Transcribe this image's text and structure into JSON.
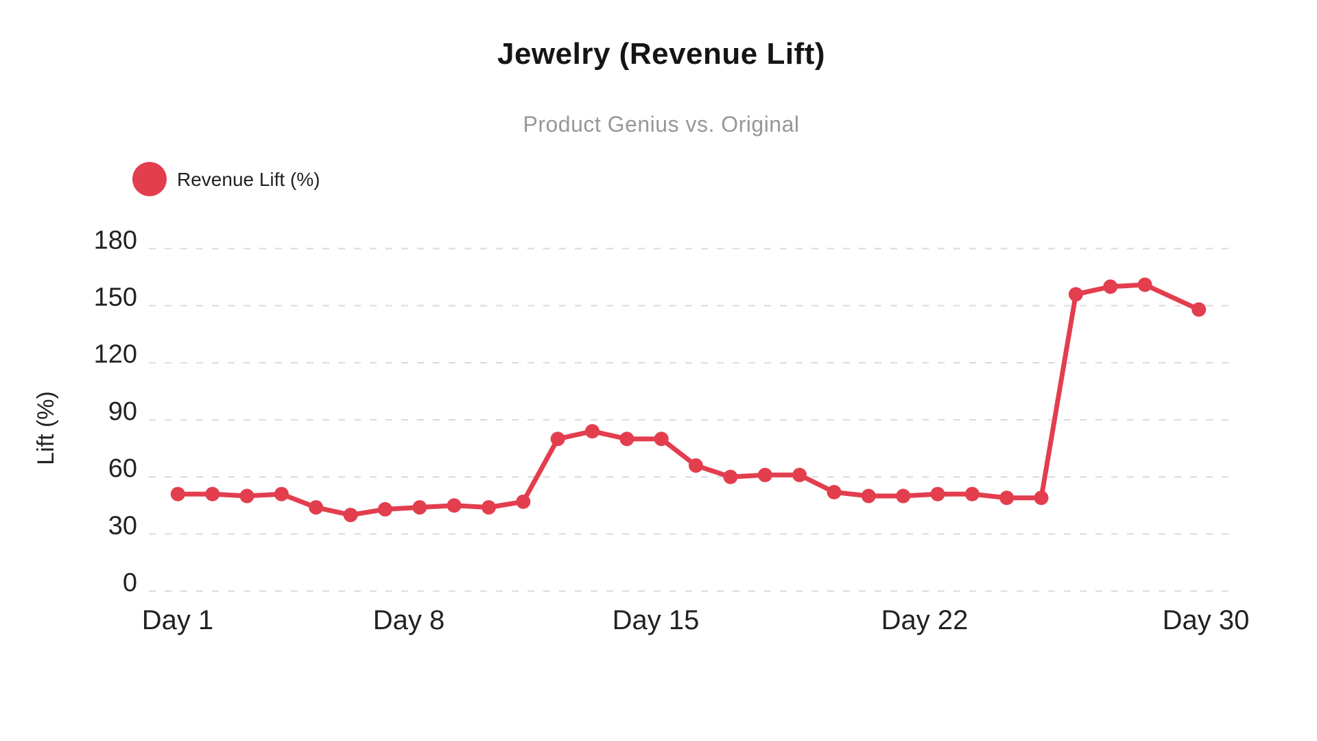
{
  "chart": {
    "title": "Jewelry (Revenue Lift)",
    "subtitle": "Product Genius vs. Original",
    "y_axis_title": "Lift (%)",
    "legend": {
      "label": "Revenue Lift (%)"
    }
  },
  "colors": {
    "series": "#E23E4E",
    "title": "#151515",
    "subtitle": "#95979A",
    "tick": "#222222",
    "grid": "#DADADA",
    "background": "#FFFFFF"
  },
  "chart_data": {
    "type": "line",
    "title": "Jewelry (Revenue Lift)",
    "subtitle": "Product Genius vs. Original",
    "xlabel": "",
    "ylabel": "Lift (%)",
    "x": [
      1,
      2,
      3,
      4,
      5,
      6,
      7,
      8,
      9,
      10,
      11,
      12,
      13,
      14,
      15,
      16,
      17,
      18,
      19,
      20,
      21,
      22,
      23,
      24,
      25,
      26,
      27,
      28,
      29,
      30
    ],
    "x_tick_labels": [
      "Day 1",
      "Day 8",
      "Day 15",
      "Day 22",
      "Day 30"
    ],
    "y_ticks": [
      0,
      30,
      60,
      90,
      120,
      150,
      180
    ],
    "ylim": [
      0,
      180
    ],
    "grid": "horizontal-dashed",
    "legend_position": "top-left",
    "markers": true,
    "series": [
      {
        "name": "Revenue Lift (%)",
        "color": "#E23E4E",
        "values": [
          51,
          51,
          50,
          51,
          44,
          40,
          43,
          44,
          45,
          44,
          47,
          80,
          84,
          80,
          80,
          66,
          60,
          61,
          61,
          52,
          50,
          50,
          51,
          51,
          49,
          49,
          156,
          160,
          161,
          148
        ]
      }
    ]
  }
}
